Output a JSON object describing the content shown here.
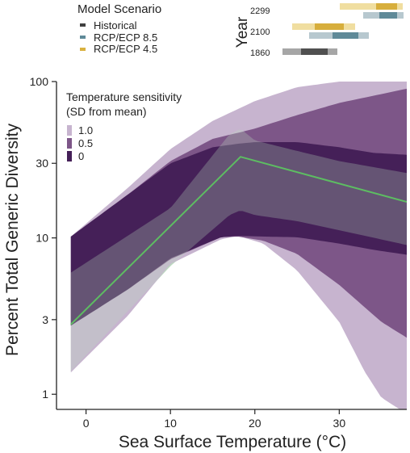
{
  "chart_data": {
    "type": "area",
    "xlabel": "Sea Surface Temperature (°C)",
    "ylabel": "Percent Total Generic Diversity",
    "x_range": [
      -3.5,
      38
    ],
    "y_range": [
      0.8,
      100
    ],
    "y_scale": "log",
    "x_ticks": [
      0,
      10,
      20,
      30
    ],
    "y_ticks": [
      1,
      3,
      10,
      30,
      100
    ],
    "grid": false,
    "legend_title": "Temperature sensitivity\n(SD from mean)",
    "legend_position": "top-left",
    "series": [
      {
        "name": "1.0",
        "color": "#c7b4cf",
        "upper": [
          [
            -1.8,
            10.2
          ],
          [
            5,
            21
          ],
          [
            10,
            37
          ],
          [
            15,
            56
          ],
          [
            20,
            75
          ],
          [
            25,
            92
          ],
          [
            30,
            100
          ],
          [
            38,
            100
          ]
        ],
        "lower": [
          [
            -1.8,
            1.38
          ],
          [
            5,
            3.2
          ],
          [
            10,
            6.8
          ],
          [
            16,
            9.8
          ],
          [
            18,
            10.3
          ],
          [
            21,
            9.2
          ],
          [
            25,
            6.2
          ],
          [
            30,
            2.9
          ],
          [
            33,
            1.4
          ],
          [
            35,
            0.95
          ],
          [
            38,
            0.75
          ]
        ]
      },
      {
        "name": "0.5",
        "color": "#7d5688",
        "upper": [
          [
            -1.8,
            10.2
          ],
          [
            5,
            19
          ],
          [
            10,
            31
          ],
          [
            15,
            43
          ],
          [
            18,
            47
          ],
          [
            20,
            50
          ],
          [
            25,
            61
          ],
          [
            30,
            73
          ],
          [
            38,
            90
          ]
        ],
        "lower": [
          [
            -1.8,
            2.75
          ],
          [
            5,
            4.7
          ],
          [
            10,
            7.3
          ],
          [
            16,
            10.1
          ],
          [
            18,
            10.2
          ],
          [
            21,
            9.6
          ],
          [
            25,
            7.9
          ],
          [
            30,
            5.0
          ],
          [
            35,
            2.9
          ],
          [
            38,
            2.3
          ]
        ]
      },
      {
        "name": "0",
        "color": "#452058",
        "upper": [
          [
            -1.8,
            10.2
          ],
          [
            5,
            19
          ],
          [
            10,
            30
          ],
          [
            15,
            38
          ],
          [
            18,
            40
          ],
          [
            20,
            41
          ],
          [
            25,
            41
          ],
          [
            30,
            38
          ],
          [
            34,
            35
          ],
          [
            38,
            34
          ]
        ],
        "lower": [
          [
            -1.8,
            2.75
          ],
          [
            5,
            4.7
          ],
          [
            10,
            7.4
          ],
          [
            16,
            10.1
          ],
          [
            18,
            10.3
          ],
          [
            21,
            10.2
          ],
          [
            25,
            10.1
          ],
          [
            30,
            9.2
          ],
          [
            34,
            8.4
          ],
          [
            38,
            7.8
          ]
        ]
      }
    ],
    "historical_band": {
      "color": "#bcdcbf",
      "upper": [
        [
          -1.8,
          6.0
        ],
        [
          10,
          15.5
        ],
        [
          17,
          46
        ],
        [
          18.3,
          50
        ],
        [
          20,
          42
        ],
        [
          25,
          36
        ],
        [
          30,
          31
        ],
        [
          38,
          26
        ]
      ],
      "lower": [
        [
          -1.8,
          1.4
        ],
        [
          10,
          6.6
        ],
        [
          17,
          14
        ],
        [
          18.3,
          15
        ],
        [
          20,
          14
        ],
        [
          25,
          12.8
        ],
        [
          30,
          11.2
        ],
        [
          38,
          9.0
        ]
      ]
    },
    "fitted_line": {
      "color": "#5dbd62",
      "points": [
        [
          -1.8,
          2.8
        ],
        [
          18.3,
          33
        ],
        [
          38,
          17
        ]
      ]
    }
  },
  "legend": {
    "title_line1": "Temperature sensitivity",
    "title_line2": "(SD from mean)",
    "items": [
      {
        "label": "1.0",
        "color": "#c7b4cf"
      },
      {
        "label": "0.5",
        "color": "#7d5688"
      },
      {
        "label": "0",
        "color": "#452058"
      }
    ]
  },
  "scenario_legend": {
    "title": "Model Scenario",
    "items": [
      {
        "label": "Historical",
        "color": "#404040"
      },
      {
        "label": "RCP/ECP 8.5",
        "color": "#5f8a98"
      },
      {
        "label": "RCP/ECP 4.5",
        "color": "#d9b13f"
      }
    ]
  },
  "year_panel": {
    "label": "Year",
    "rows": [
      {
        "year": "2299"
      },
      {
        "year": "2100"
      },
      {
        "year": "1860"
      }
    ]
  }
}
